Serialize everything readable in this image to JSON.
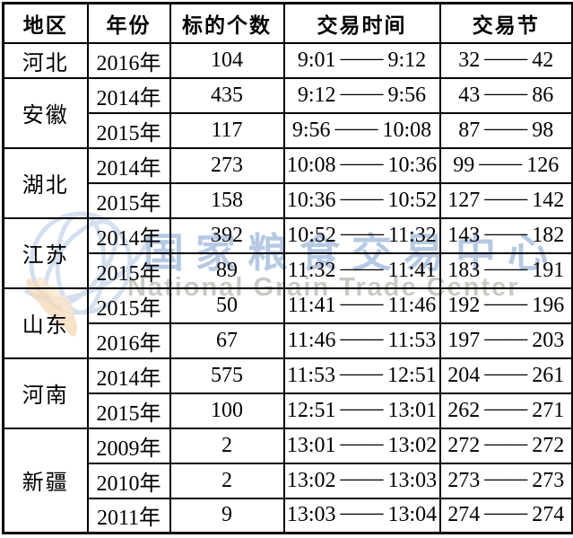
{
  "watermark": {
    "cn_text": "国家粮食交易中心",
    "en_text": "National Grain Trade Center",
    "cn_color": "#b6c9e4",
    "en_color": "#c7cbc3",
    "logo": {
      "globe_color": "#b2c8e4",
      "wheat_color": "#f0b87e",
      "wheat_color_light": "#f6d4a8"
    }
  },
  "table": {
    "headers": [
      "地区",
      "年份",
      "标的个数",
      "交易时间",
      "交易节"
    ],
    "range_separator": "——",
    "groups": [
      {
        "region": "河北",
        "rows": [
          {
            "year": "2016年",
            "count": "104",
            "time": [
              "9:01",
              "9:12"
            ],
            "session": [
              "32",
              "42"
            ]
          }
        ]
      },
      {
        "region": "安徽",
        "rows": [
          {
            "year": "2014年",
            "count": "435",
            "time": [
              "9:12",
              "9:56"
            ],
            "session": [
              "43",
              "86"
            ]
          },
          {
            "year": "2015年",
            "count": "117",
            "time": [
              "9:56",
              "10:08"
            ],
            "session": [
              "87",
              "98"
            ]
          }
        ]
      },
      {
        "region": "湖北",
        "rows": [
          {
            "year": "2014年",
            "count": "273",
            "time": [
              "10:08",
              "10:36"
            ],
            "session": [
              "99",
              "126"
            ]
          },
          {
            "year": "2015年",
            "count": "158",
            "time": [
              "10:36",
              "10:52"
            ],
            "session": [
              "127",
              "142"
            ]
          }
        ]
      },
      {
        "region": "江苏",
        "rows": [
          {
            "year": "2014年",
            "count": "392",
            "time": [
              "10:52",
              "11:32"
            ],
            "session": [
              "143",
              "182"
            ]
          },
          {
            "year": "2015年",
            "count": "89",
            "time": [
              "11:32",
              "11:41"
            ],
            "session": [
              "183",
              "191"
            ]
          }
        ]
      },
      {
        "region": "山东",
        "rows": [
          {
            "year": "2015年",
            "count": "50",
            "time": [
              "11:41",
              "11:46"
            ],
            "session": [
              "192",
              "196"
            ]
          },
          {
            "year": "2016年",
            "count": "67",
            "time": [
              "11:46",
              "11:53"
            ],
            "session": [
              "197",
              "203"
            ]
          }
        ]
      },
      {
        "region": "河南",
        "rows": [
          {
            "year": "2014年",
            "count": "575",
            "time": [
              "11:53",
              "12:51"
            ],
            "session": [
              "204",
              "261"
            ]
          },
          {
            "year": "2015年",
            "count": "100",
            "time": [
              "12:51",
              "13:01"
            ],
            "session": [
              "262",
              "271"
            ]
          }
        ]
      },
      {
        "region": "新疆",
        "rows": [
          {
            "year": "2009年",
            "count": "2",
            "time": [
              "13:01",
              "13:02"
            ],
            "session": [
              "272",
              "272"
            ]
          },
          {
            "year": "2010年",
            "count": "2",
            "time": [
              "13:02",
              "13:03"
            ],
            "session": [
              "273",
              "273"
            ]
          },
          {
            "year": "2011年",
            "count": "9",
            "time": [
              "13:03",
              "13:04"
            ],
            "session": [
              "274",
              "274"
            ]
          }
        ]
      }
    ]
  }
}
